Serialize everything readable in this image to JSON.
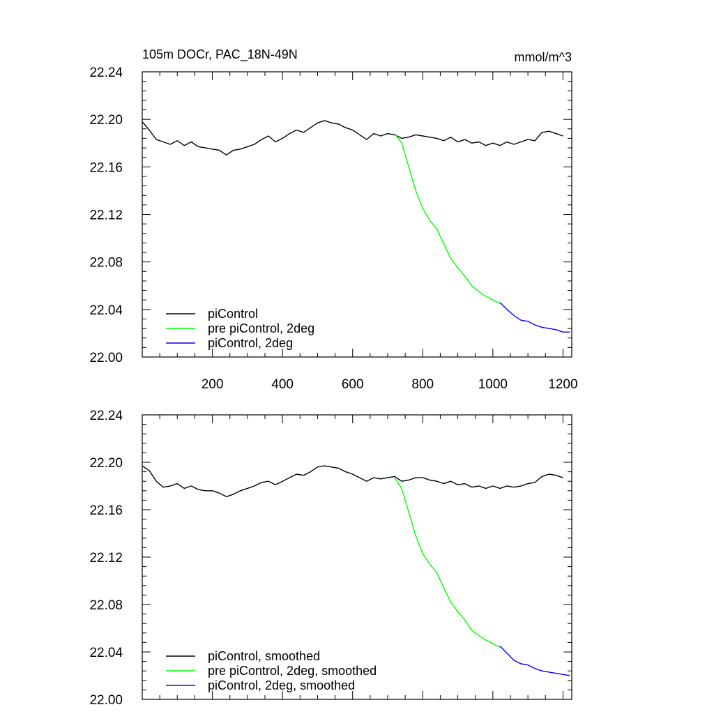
{
  "figure": {
    "title_left": "105m DOCr, PAC_18N-49N",
    "title_right": "mmol/m^3"
  },
  "chart_data": [
    {
      "type": "line",
      "title": "105m DOCr, PAC_18N-49N",
      "units": "mmol/m^3",
      "xlim": [
        0,
        1225
      ],
      "ylim": [
        22.0,
        22.24
      ],
      "x_ticks": [
        200,
        400,
        600,
        800,
        1000,
        1200
      ],
      "x_tick_labels": [
        "200",
        "400",
        "600",
        "800",
        "1000",
        "1200"
      ],
      "y_ticks": [
        22.0,
        22.04,
        22.08,
        22.12,
        22.16,
        22.2,
        22.24
      ],
      "y_tick_labels": [
        "22.00",
        "22.04",
        "22.08",
        "22.12",
        "22.16",
        "22.20",
        "22.24"
      ],
      "legend_position": "bottom-left",
      "series": [
        {
          "name": "piControl",
          "color": "#000000",
          "x": [
            0,
            20,
            40,
            60,
            80,
            100,
            120,
            140,
            160,
            180,
            200,
            220,
            240,
            260,
            280,
            300,
            320,
            340,
            360,
            380,
            400,
            420,
            440,
            460,
            480,
            500,
            520,
            540,
            560,
            580,
            600,
            620,
            640,
            660,
            680,
            700,
            720,
            740,
            760,
            780,
            800,
            820,
            840,
            860,
            880,
            900,
            920,
            940,
            960,
            980,
            1000,
            1020,
            1040,
            1060,
            1080,
            1100,
            1120,
            1140,
            1160,
            1180,
            1200
          ],
          "y": [
            22.198,
            22.191,
            22.183,
            22.181,
            22.179,
            22.182,
            22.178,
            22.181,
            22.177,
            22.176,
            22.175,
            22.174,
            22.17,
            22.174,
            22.175,
            22.177,
            22.179,
            22.183,
            22.186,
            22.181,
            22.184,
            22.188,
            22.191,
            22.189,
            22.193,
            22.197,
            22.199,
            22.197,
            22.196,
            22.193,
            22.191,
            22.187,
            22.183,
            22.188,
            22.186,
            22.188,
            22.187,
            22.184,
            22.185,
            22.187,
            22.186,
            22.185,
            22.184,
            22.182,
            22.185,
            22.181,
            22.183,
            22.18,
            22.181,
            22.178,
            22.18,
            22.178,
            22.181,
            22.179,
            22.181,
            22.183,
            22.182,
            22.189,
            22.19,
            22.188,
            22.186
          ]
        },
        {
          "name": "pre piControl, 2deg",
          "color": "#00ff00",
          "x": [
            720,
            740,
            760,
            780,
            800,
            820,
            840,
            860,
            880,
            900,
            920,
            940,
            960,
            980,
            1000,
            1020
          ],
          "y": [
            22.188,
            22.18,
            22.16,
            22.14,
            22.125,
            22.115,
            22.108,
            22.095,
            22.083,
            22.075,
            22.068,
            22.06,
            22.055,
            22.051,
            22.048,
            22.045
          ]
        },
        {
          "name": "piControl, 2deg",
          "color": "#0000ff",
          "x": [
            1020,
            1040,
            1060,
            1080,
            1100,
            1120,
            1140,
            1160,
            1180,
            1200,
            1220
          ],
          "y": [
            22.046,
            22.04,
            22.035,
            22.031,
            22.03,
            22.027,
            22.025,
            22.024,
            22.023,
            22.021,
            22.021
          ]
        }
      ]
    },
    {
      "type": "line",
      "xlim": [
        0,
        1225
      ],
      "ylim": [
        22.0,
        22.24
      ],
      "x_ticks": [
        200,
        400,
        600,
        800,
        1000,
        1200
      ],
      "x_tick_labels": [],
      "y_ticks": [
        22.0,
        22.04,
        22.08,
        22.12,
        22.16,
        22.2,
        22.24
      ],
      "y_tick_labels": [
        "22.00",
        "22.04",
        "22.08",
        "22.12",
        "22.16",
        "22.20",
        "22.24"
      ],
      "legend_position": "bottom-left",
      "series": [
        {
          "name": "piControl, smoothed",
          "color": "#000000",
          "x": [
            0,
            20,
            40,
            60,
            80,
            100,
            120,
            140,
            160,
            180,
            200,
            220,
            240,
            260,
            280,
            300,
            320,
            340,
            360,
            380,
            400,
            420,
            440,
            460,
            480,
            500,
            520,
            540,
            560,
            580,
            600,
            620,
            640,
            660,
            680,
            700,
            720,
            740,
            760,
            780,
            800,
            820,
            840,
            860,
            880,
            900,
            920,
            940,
            960,
            980,
            1000,
            1020,
            1040,
            1060,
            1080,
            1100,
            1120,
            1140,
            1160,
            1180,
            1200
          ],
          "y": [
            22.197,
            22.193,
            22.184,
            22.179,
            22.18,
            22.182,
            22.178,
            22.18,
            22.177,
            22.176,
            22.176,
            22.174,
            22.171,
            22.173,
            22.176,
            22.178,
            22.18,
            22.183,
            22.184,
            22.181,
            22.184,
            22.187,
            22.19,
            22.189,
            22.192,
            22.196,
            22.197,
            22.196,
            22.195,
            22.192,
            22.19,
            22.187,
            22.184,
            22.187,
            22.186,
            22.187,
            22.188,
            22.184,
            22.185,
            22.187,
            22.187,
            22.185,
            22.184,
            22.182,
            22.184,
            22.181,
            22.182,
            22.179,
            22.18,
            22.178,
            22.18,
            22.178,
            22.18,
            22.179,
            22.18,
            22.182,
            22.183,
            22.188,
            22.19,
            22.189,
            22.187
          ]
        },
        {
          "name": "pre piControl, 2deg, smoothed",
          "color": "#00ff00",
          "x": [
            720,
            740,
            760,
            780,
            800,
            820,
            840,
            860,
            880,
            900,
            920,
            940,
            960,
            980,
            1000,
            1020
          ],
          "y": [
            22.187,
            22.178,
            22.158,
            22.138,
            22.123,
            22.114,
            22.107,
            22.094,
            22.082,
            22.074,
            22.067,
            22.058,
            22.054,
            22.05,
            22.047,
            22.044
          ]
        },
        {
          "name": "piControl, 2deg, smoothed",
          "color": "#0000ff",
          "x": [
            1020,
            1040,
            1060,
            1080,
            1100,
            1120,
            1140,
            1160,
            1180,
            1200,
            1220
          ],
          "y": [
            22.045,
            22.039,
            22.033,
            22.03,
            22.029,
            22.026,
            22.024,
            22.023,
            22.022,
            22.021,
            22.02
          ]
        }
      ]
    }
  ]
}
